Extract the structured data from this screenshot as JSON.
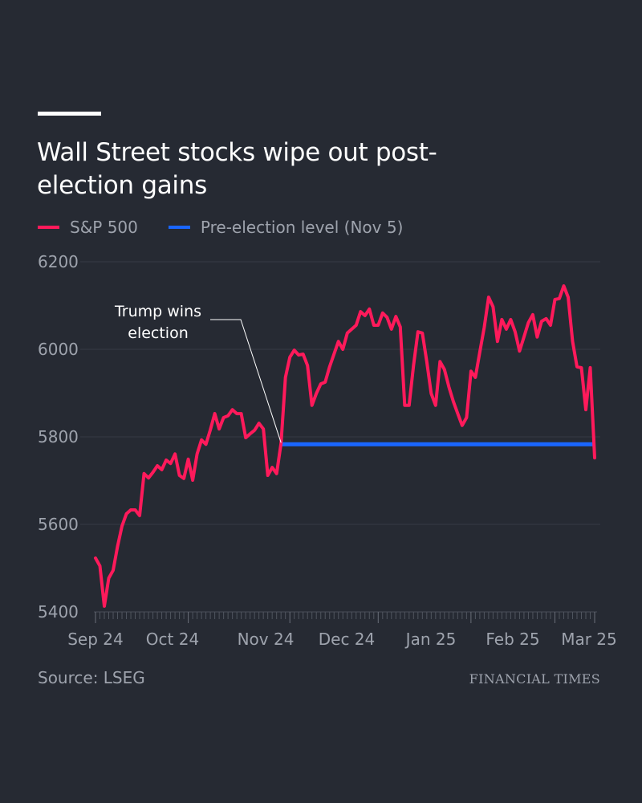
{
  "header": {
    "title": "Wall Street stocks wipe out post-election gains"
  },
  "legend": [
    {
      "label": "S&P 500",
      "color": "#ff1a5b"
    },
    {
      "label": "Pre-election level (Nov 5)",
      "color": "#1a66ff"
    }
  ],
  "footer": {
    "source": "Source: LSEG",
    "brand": "FINANCIAL TIMES"
  },
  "chart_data": {
    "type": "line",
    "title": "Wall Street stocks wipe out post-election gains",
    "xlabel": "",
    "ylabel": "",
    "ylim": [
      5400,
      6200
    ],
    "yticks": [
      5400,
      5600,
      5800,
      6000,
      6200
    ],
    "ytick_labels": [
      "5400",
      "5600",
      "5800",
      "6000",
      "6200"
    ],
    "xtick_labels": [
      "Sep 24",
      "Oct 24",
      "Nov 24",
      "Dec 24",
      "Jan 25",
      "Feb 25",
      "Mar 25"
    ],
    "grid": true,
    "legend_position": "top-left",
    "x_unit": "trading-day index (approx. Sep 2024 – Mar 2025)",
    "series": [
      {
        "name": "S&P 500",
        "color": "#ff1a5b",
        "values": [
          5523,
          5505,
          5413,
          5477,
          5495,
          5550,
          5596,
          5624,
          5633,
          5633,
          5620,
          5716,
          5706,
          5719,
          5734,
          5725,
          5747,
          5739,
          5761,
          5712,
          5705,
          5749,
          5701,
          5761,
          5793,
          5783,
          5816,
          5853,
          5818,
          5844,
          5848,
          5862,
          5853,
          5853,
          5798,
          5807,
          5815,
          5831,
          5818,
          5712,
          5730,
          5716,
          5785,
          5936,
          5982,
          5998,
          5987,
          5989,
          5963,
          5872,
          5899,
          5921,
          5925,
          5960,
          5989,
          6018,
          6000,
          6037,
          6046,
          6055,
          6086,
          6077,
          6092,
          6055,
          6055,
          6083,
          6073,
          6046,
          6075,
          6051,
          5872,
          5872,
          5963,
          6040,
          6037,
          5972,
          5899,
          5872,
          5972,
          5954,
          5914,
          5881,
          5853,
          5826,
          5844,
          5950,
          5936,
          5994,
          6050,
          6119,
          6097,
          6018,
          6068,
          6046,
          6068,
          6040,
          5996,
          6028,
          6061,
          6079,
          6028,
          6064,
          6070,
          6055,
          6114,
          6116,
          6145,
          6119,
          6018,
          5960,
          5958,
          5862,
          5958,
          5752
        ]
      },
      {
        "name": "Pre-election level (Nov 5)",
        "color": "#1a66ff",
        "value": 5783,
        "start_index": 42
      }
    ],
    "annotations": [
      {
        "text_lines": [
          "Trump wins",
          "election"
        ],
        "points_to": "Nov 5 2024 (index 42)"
      }
    ]
  }
}
